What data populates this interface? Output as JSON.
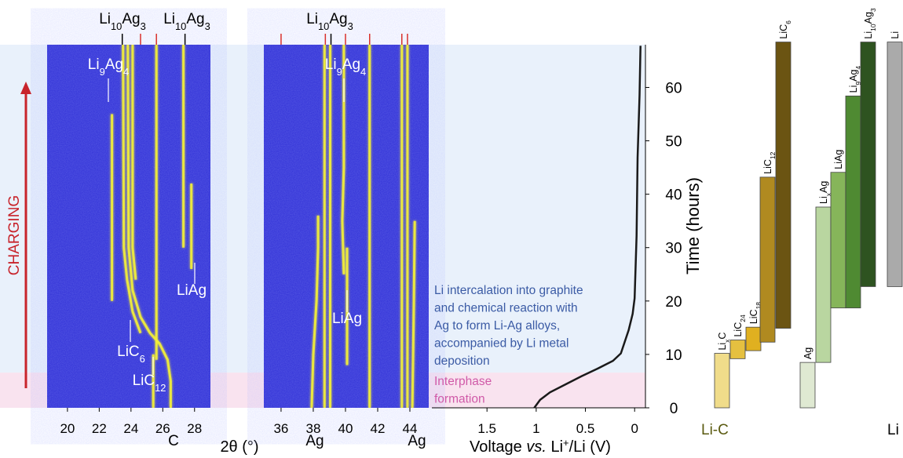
{
  "chart_data": [
    {
      "type": "xrd-heatmap",
      "xlim": [
        18.72,
        29.0
      ],
      "ylim": [
        0,
        68
      ],
      "xticks": [
        20,
        22,
        24,
        26,
        28
      ],
      "xlabel": "2θ (°)",
      "side_label": "CHARGING",
      "ref_marks": [
        {
          "value": 23.45,
          "color": "#000000"
        },
        {
          "value": 24.6,
          "color": "#d9312b"
        },
        {
          "value": 25.6,
          "color": "#d9312b"
        },
        {
          "value": 27.4,
          "color": "#000000"
        }
      ],
      "peaks": [
        {
          "x": [
            22.8,
            22.8
          ],
          "t": [
            55,
            20
          ]
        },
        {
          "x": [
            23.5,
            23.55,
            23.75,
            24.1,
            24.6
          ],
          "t": [
            68,
            30,
            24,
            18,
            14
          ]
        },
        {
          "x": [
            23.8,
            23.85,
            24.1,
            24.6,
            25.2,
            25.8,
            26.3,
            26.5,
            26.5
          ],
          "t": [
            68,
            30,
            22,
            17,
            14,
            12,
            9,
            5,
            0
          ]
        },
        {
          "x": [
            24.1,
            24.1,
            24.3
          ],
          "t": [
            68,
            30,
            24
          ]
        },
        {
          "x": [
            25.6,
            25.6
          ],
          "t": [
            68,
            9
          ]
        },
        {
          "x": [
            25.4,
            25.4
          ],
          "t": [
            10,
            0
          ]
        },
        {
          "x": [
            27.3,
            27.3
          ],
          "t": [
            68,
            30
          ]
        },
        {
          "x": [
            27.8,
            27.8
          ],
          "t": [
            42,
            26
          ]
        }
      ],
      "annotations": [
        [
          "Li",
          "10",
          "Ag",
          "3"
        ],
        [
          "Li",
          "10",
          "Ag",
          "3"
        ],
        [
          "Li",
          "9",
          "Ag",
          "4"
        ],
        [
          "LiAg"
        ],
        [
          "LiC",
          "6"
        ],
        [
          "LiC",
          "12"
        ],
        [
          "C"
        ]
      ]
    },
    {
      "type": "xrd-heatmap",
      "xlim": [
        34.93,
        45.17
      ],
      "ylim": [
        0,
        68
      ],
      "xticks": [
        36,
        38,
        40,
        42,
        44
      ],
      "ref_marks": [
        {
          "value": 36.0,
          "color": "#d9312b"
        },
        {
          "value": 38.75,
          "color": "#d9312b"
        },
        {
          "value": 39.1,
          "color": "#000000"
        },
        {
          "value": 40.0,
          "color": "#d9312b"
        },
        {
          "value": 41.5,
          "color": "#d9312b"
        },
        {
          "value": 43.5,
          "color": "#d9312b"
        },
        {
          "value": 43.85,
          "color": "#d9312b"
        }
      ],
      "peaks": [
        {
          "x": [
            37.9,
            38.0,
            38.2,
            38.3,
            38.3
          ],
          "t": [
            0,
            10,
            20,
            30,
            36
          ]
        },
        {
          "x": [
            38.7,
            38.7
          ],
          "t": [
            68,
            0
          ]
        },
        {
          "x": [
            39.05,
            39.05
          ],
          "t": [
            68,
            0
          ]
        },
        {
          "x": [
            39.9,
            39.9,
            39.8,
            39.9
          ],
          "t": [
            68,
            45,
            35,
            25
          ]
        },
        {
          "x": [
            40.1,
            40.1
          ],
          "t": [
            30,
            8
          ]
        },
        {
          "x": [
            41.5,
            41.5
          ],
          "t": [
            68,
            0
          ]
        },
        {
          "x": [
            43.5,
            43.5
          ],
          "t": [
            68,
            0
          ]
        },
        {
          "x": [
            43.85,
            43.85
          ],
          "t": [
            68,
            0
          ]
        },
        {
          "x": [
            44.15,
            44.25,
            44.3
          ],
          "t": [
            0,
            20,
            35
          ]
        }
      ],
      "annotations": [
        [
          "Li",
          "10",
          "Ag",
          "3"
        ],
        [
          "Li",
          "9",
          "Ag",
          "4"
        ],
        [
          "LiAg"
        ],
        [
          "Ag"
        ],
        [
          "Ag"
        ]
      ]
    },
    {
      "type": "line",
      "xlabel": [
        "Voltage ",
        "vs.",
        " Li",
        "+",
        "/Li (V)"
      ],
      "ylabel": "Time (hours)",
      "xlim": [
        2.06,
        -0.11
      ],
      "xticks": [
        1.5,
        1,
        0.5,
        0
      ],
      "ylim": [
        0,
        68
      ],
      "yticks": [
        0,
        10,
        20,
        30,
        40,
        50,
        60
      ],
      "color": "#1a1a1a",
      "x": [
        1.02,
        0.96,
        0.86,
        0.7,
        0.54,
        0.38,
        0.22,
        0.14,
        0.06,
        0.02,
        0.0,
        -0.02,
        -0.03,
        -0.05,
        -0.06
      ],
      "values": [
        0,
        1.5,
        2.9,
        4.4,
        5.9,
        7.3,
        8.8,
        10.2,
        14.6,
        17.6,
        20.5,
        32.2,
        46.9,
        58.6,
        67.8
      ],
      "regions": [
        {
          "from": 0,
          "to": 6.6,
          "color": "#f9e3ef"
        },
        {
          "from": 6.6,
          "to": 68,
          "color": "#e9f1fb"
        }
      ],
      "notes": [
        {
          "lines": [
            "Li intercalation into graphite",
            "and chemical reaction with",
            "Ag to form Li-Ag alloys,",
            "accompanied by Li metal",
            "deposition"
          ],
          "color": "#3b5ba5"
        },
        {
          "lines": [
            "Interphase",
            "formation"
          ],
          "color": "#d05aa8"
        }
      ]
    },
    {
      "type": "range-bar",
      "ylim": [
        0,
        68
      ],
      "categories": [
        [
          "Li",
          "x",
          "C"
        ],
        [
          "LiC",
          "24"
        ],
        [
          "LiC",
          "18"
        ],
        [
          "LiC",
          "12"
        ],
        [
          "LiC",
          "6"
        ],
        [
          "Ag"
        ],
        [
          "Li",
          "x",
          "Ag"
        ],
        [
          "LiAg"
        ],
        [
          "Li",
          "9",
          "Ag",
          "4"
        ],
        [
          "Li",
          "10",
          "Ag",
          "3"
        ],
        [
          "Li"
        ]
      ],
      "starts": [
        0,
        9.2,
        10.7,
        12.3,
        14.9,
        0,
        8.5,
        18.7,
        18.7,
        22.7,
        22.7
      ],
      "ends": [
        10.2,
        12.7,
        15.1,
        43.2,
        68.5,
        8.5,
        37.6,
        44.1,
        58.4,
        68.5,
        68.5
      ],
      "colors": [
        "#f0dc8a",
        "#e5c040",
        "#e0b020",
        "#b08a20",
        "#6b5412",
        "#dfe9d2",
        "#b9d6a0",
        "#86b55a",
        "#4f8a32",
        "#2e5320",
        "#aaaaaa"
      ],
      "group_labels": [
        "Li-C",
        "Li"
      ]
    }
  ]
}
